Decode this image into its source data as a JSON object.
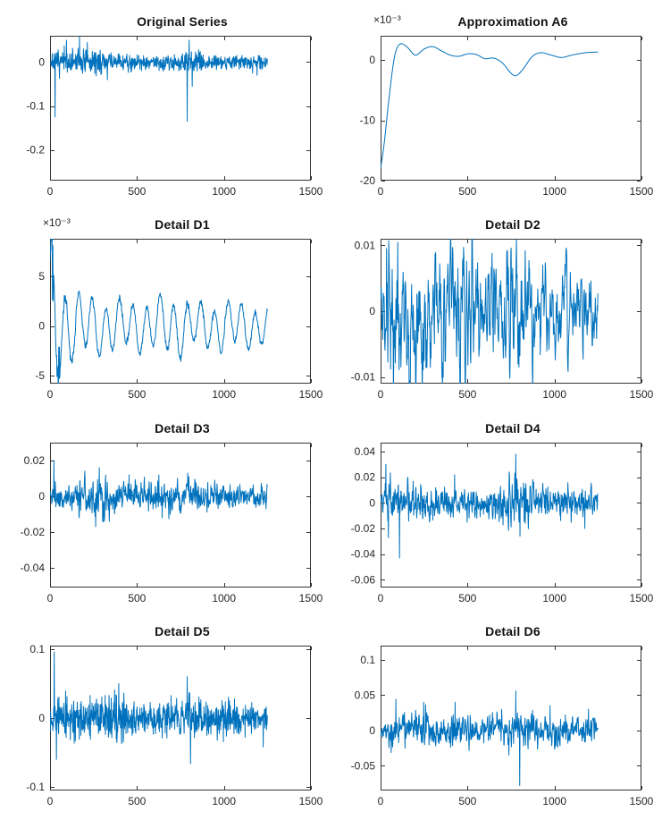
{
  "colors": {
    "line": "#0072BD",
    "axis": "#333333",
    "text": "#262626",
    "background": "#ffffff"
  },
  "chart_data": [
    {
      "type": "line",
      "title": "Original Series",
      "scale_label": null,
      "xlim": [
        0,
        1500
      ],
      "xticks": [
        0,
        500,
        1000,
        1500
      ],
      "xtick_labels": [
        "0",
        "500",
        "1000",
        "1500"
      ],
      "ylim": [
        -0.27,
        0.06
      ],
      "yticks": [
        0,
        -0.1,
        -0.2
      ],
      "ytick_labels": [
        "0",
        "-0.1",
        "-0.2"
      ],
      "x_extent": 1250,
      "signal": {
        "kind": "noise",
        "seed": 7,
        "step": 1.6,
        "gain": 1.5,
        "smooth": 1,
        "envelope": [
          [
            0,
            0.01
          ],
          [
            40,
            0.016
          ],
          [
            120,
            0.02
          ],
          [
            200,
            0.018
          ],
          [
            300,
            0.016
          ],
          [
            450,
            0.012
          ],
          [
            600,
            0.011
          ],
          [
            750,
            0.013
          ],
          [
            820,
            0.018
          ],
          [
            900,
            0.011
          ],
          [
            1050,
            0.012
          ],
          [
            1250,
            0.009
          ]
        ],
        "spikes": [
          [
            28,
            -0.125
          ],
          [
            95,
            0.05
          ],
          [
            170,
            0.058
          ],
          [
            215,
            0.045
          ],
          [
            330,
            -0.04
          ],
          [
            788,
            -0.135
          ],
          [
            800,
            0.05
          ],
          [
            818,
            -0.055
          ],
          [
            1190,
            -0.03
          ]
        ]
      }
    },
    {
      "type": "line",
      "title": "Approximation A6",
      "scale_label": "×10⁻³",
      "xlim": [
        0,
        1500
      ],
      "xticks": [
        0,
        500,
        1000,
        1500
      ],
      "xtick_labels": [
        "0",
        "500",
        "1000",
        "1500"
      ],
      "ylim": [
        -20,
        4
      ],
      "yticks": [
        0,
        -10,
        -20
      ],
      "ytick_labels": [
        "0",
        "-10",
        "-20"
      ],
      "x_extent": 1250,
      "signal": {
        "kind": "curve",
        "points": [
          [
            0,
            -18
          ],
          [
            20,
            -14
          ],
          [
            50,
            -6
          ],
          [
            80,
            0.5
          ],
          [
            110,
            2.6
          ],
          [
            150,
            2.2
          ],
          [
            200,
            0.8
          ],
          [
            250,
            1.8
          ],
          [
            300,
            2.2
          ],
          [
            350,
            1.5
          ],
          [
            400,
            0.8
          ],
          [
            450,
            0.6
          ],
          [
            500,
            1.0
          ],
          [
            550,
            0.9
          ],
          [
            600,
            0.2
          ],
          [
            650,
            0.3
          ],
          [
            700,
            -0.5
          ],
          [
            750,
            -2.2
          ],
          [
            780,
            -2.6
          ],
          [
            820,
            -1.5
          ],
          [
            870,
            0.5
          ],
          [
            920,
            1.2
          ],
          [
            980,
            0.8
          ],
          [
            1040,
            0.4
          ],
          [
            1100,
            0.8
          ],
          [
            1180,
            1.2
          ],
          [
            1250,
            1.3
          ]
        ]
      }
    },
    {
      "type": "line",
      "title": "Detail D1",
      "scale_label": "×10⁻³",
      "xlim": [
        0,
        1500
      ],
      "xticks": [
        0,
        500,
        1000,
        1500
      ],
      "xtick_labels": [
        "0",
        "500",
        "1000",
        "1500"
      ],
      "ylim": [
        -5.8,
        8.8
      ],
      "yticks": [
        5,
        0,
        -5
      ],
      "ytick_labels": [
        "5",
        "0",
        "-5"
      ],
      "x_extent": 1250,
      "signal": {
        "kind": "osc",
        "seed": 3,
        "step": 2,
        "period": 78,
        "phase": 0.8,
        "mod_period": 215,
        "mod_amp": 0.3,
        "noise_amp": 0.15,
        "envelope": [
          [
            0,
            7.5
          ],
          [
            60,
            5.0
          ],
          [
            120,
            3.2
          ],
          [
            250,
            2.6
          ],
          [
            400,
            2.3
          ],
          [
            550,
            2.1
          ],
          [
            700,
            2.8
          ],
          [
            850,
            2.0
          ],
          [
            1000,
            2.3
          ],
          [
            1150,
            1.9
          ],
          [
            1250,
            1.8
          ]
        ],
        "spikes": [
          [
            16,
            8.1
          ],
          [
            52,
            -5.3
          ]
        ]
      }
    },
    {
      "type": "line",
      "title": "Detail D2",
      "scale_label": null,
      "xlim": [
        0,
        1500
      ],
      "xticks": [
        0,
        500,
        1000,
        1500
      ],
      "xtick_labels": [
        "0",
        "500",
        "1000",
        "1500"
      ],
      "ylim": [
        -0.011,
        0.011
      ],
      "yticks": [
        0.01,
        0,
        -0.01
      ],
      "ytick_labels": [
        "0.01",
        "0",
        "-0.01"
      ],
      "x_extent": 1250,
      "signal": {
        "kind": "noise",
        "seed": 11,
        "step": 1.8,
        "gain": 1.9,
        "smooth": 4,
        "envelope": [
          [
            0,
            0.0045
          ],
          [
            30,
            0.0085
          ],
          [
            90,
            0.006
          ],
          [
            180,
            0.0045
          ],
          [
            280,
            0.0055
          ],
          [
            380,
            0.005
          ],
          [
            480,
            0.0055
          ],
          [
            580,
            0.004
          ],
          [
            680,
            0.0045
          ],
          [
            780,
            0.0065
          ],
          [
            830,
            0.004
          ],
          [
            950,
            0.0035
          ],
          [
            1100,
            0.004
          ],
          [
            1250,
            0.0035
          ]
        ],
        "spikes": [
          [
            34,
            0.0095
          ],
          [
            58,
            -0.0088
          ],
          [
            796,
            -0.0085
          ]
        ]
      }
    },
    {
      "type": "line",
      "title": "Detail D3",
      "scale_label": null,
      "xlim": [
        0,
        1500
      ],
      "xticks": [
        0,
        500,
        1000,
        1500
      ],
      "xtick_labels": [
        "0",
        "500",
        "1000",
        "1500"
      ],
      "ylim": [
        -0.051,
        0.03
      ],
      "yticks": [
        0.02,
        0,
        -0.02,
        -0.04
      ],
      "ytick_labels": [
        "0.02",
        "0",
        "-0.02",
        "-0.04"
      ],
      "x_extent": 1250,
      "signal": {
        "kind": "noise",
        "seed": 5,
        "step": 1.6,
        "gain": 1.6,
        "smooth": 2,
        "envelope": [
          [
            0,
            0.0045
          ],
          [
            80,
            0.005
          ],
          [
            180,
            0.0055
          ],
          [
            270,
            0.008
          ],
          [
            340,
            0.0055
          ],
          [
            450,
            0.005
          ],
          [
            560,
            0.0055
          ],
          [
            660,
            0.005
          ],
          [
            780,
            0.0055
          ],
          [
            900,
            0.0045
          ],
          [
            1020,
            0.005
          ],
          [
            1150,
            0.004
          ],
          [
            1250,
            0.0035
          ]
        ],
        "spikes": [
          [
            22,
            0.02
          ],
          [
            262,
            -0.017
          ],
          [
            283,
            0.016
          ],
          [
            302,
            -0.014
          ],
          [
            455,
            0.012
          ],
          [
            625,
            0.012
          ],
          [
            645,
            -0.012
          ],
          [
            798,
            0.011
          ]
        ]
      }
    },
    {
      "type": "line",
      "title": "Detail D4",
      "scale_label": null,
      "xlim": [
        0,
        1500
      ],
      "xticks": [
        0,
        500,
        1000,
        1500
      ],
      "xtick_labels": [
        "0",
        "500",
        "1000",
        "1500"
      ],
      "ylim": [
        -0.066,
        0.047
      ],
      "yticks": [
        0.04,
        0.02,
        0,
        -0.02,
        -0.04,
        -0.06
      ],
      "ytick_labels": [
        "0.04",
        "0.02",
        "0",
        "-0.02",
        "-0.04",
        "-0.06"
      ],
      "x_extent": 1250,
      "signal": {
        "kind": "noise",
        "seed": 9,
        "step": 1.6,
        "gain": 1.6,
        "smooth": 2,
        "envelope": [
          [
            0,
            0.007
          ],
          [
            50,
            0.011
          ],
          [
            130,
            0.009
          ],
          [
            220,
            0.0085
          ],
          [
            320,
            0.009
          ],
          [
            420,
            0.008
          ],
          [
            520,
            0.0075
          ],
          [
            620,
            0.008
          ],
          [
            720,
            0.009
          ],
          [
            790,
            0.013
          ],
          [
            860,
            0.009
          ],
          [
            980,
            0.0075
          ],
          [
            1120,
            0.007
          ],
          [
            1250,
            0.006
          ]
        ],
        "spikes": [
          [
            30,
            0.03
          ],
          [
            44,
            -0.027
          ],
          [
            108,
            -0.043
          ],
          [
            425,
            0.022
          ],
          [
            778,
            0.038
          ],
          [
            802,
            -0.026
          ],
          [
            1175,
            -0.02
          ]
        ]
      }
    },
    {
      "type": "line",
      "title": "Detail D5",
      "scale_label": null,
      "xlim": [
        0,
        1500
      ],
      "xticks": [
        0,
        500,
        1000,
        1500
      ],
      "xtick_labels": [
        "0",
        "500",
        "1000",
        "1500"
      ],
      "ylim": [
        -0.105,
        0.105
      ],
      "yticks": [
        0.1,
        0,
        -0.1
      ],
      "ytick_labels": [
        "0.1",
        "0",
        "-0.1"
      ],
      "x_extent": 1250,
      "signal": {
        "kind": "noise",
        "seed": 13,
        "step": 1.6,
        "gain": 1.5,
        "smooth": 1,
        "envelope": [
          [
            0,
            0.009
          ],
          [
            50,
            0.016
          ],
          [
            140,
            0.02
          ],
          [
            240,
            0.018
          ],
          [
            340,
            0.022
          ],
          [
            440,
            0.016
          ],
          [
            540,
            0.013
          ],
          [
            640,
            0.015
          ],
          [
            740,
            0.016
          ],
          [
            810,
            0.024
          ],
          [
            900,
            0.013
          ],
          [
            1010,
            0.016
          ],
          [
            1120,
            0.013
          ],
          [
            1250,
            0.011
          ]
        ],
        "spikes": [
          [
            24,
            0.096
          ],
          [
            36,
            -0.06
          ],
          [
            395,
            0.05
          ],
          [
            788,
            0.06
          ],
          [
            808,
            -0.066
          ],
          [
            1225,
            -0.042
          ]
        ]
      }
    },
    {
      "type": "line",
      "title": "Detail D6",
      "scale_label": null,
      "xlim": [
        0,
        1500
      ],
      "xticks": [
        0,
        500,
        1000,
        1500
      ],
      "xtick_labels": [
        "0",
        "500",
        "1000",
        "1500"
      ],
      "ylim": [
        -0.085,
        0.12
      ],
      "yticks": [
        0.1,
        0.05,
        0,
        -0.05
      ],
      "ytick_labels": [
        "0.1",
        "0.05",
        "0",
        "-0.05"
      ],
      "x_extent": 1250,
      "signal": {
        "kind": "noise",
        "seed": 17,
        "step": 1.6,
        "gain": 1.6,
        "smooth": 2,
        "envelope": [
          [
            0,
            0.009
          ],
          [
            70,
            0.015
          ],
          [
            150,
            0.013
          ],
          [
            250,
            0.017
          ],
          [
            350,
            0.013
          ],
          [
            450,
            0.015
          ],
          [
            550,
            0.011
          ],
          [
            650,
            0.013
          ],
          [
            750,
            0.017
          ],
          [
            850,
            0.013
          ],
          [
            950,
            0.011
          ],
          [
            1060,
            0.013
          ],
          [
            1160,
            0.011
          ],
          [
            1250,
            0.009
          ]
        ],
        "spikes": [
          [
            88,
            0.044
          ],
          [
            248,
            0.04
          ],
          [
            428,
            0.04
          ],
          [
            778,
            0.056
          ],
          [
            800,
            -0.078
          ],
          [
            975,
            0.035
          ],
          [
            1195,
            0.03
          ]
        ]
      }
    }
  ]
}
